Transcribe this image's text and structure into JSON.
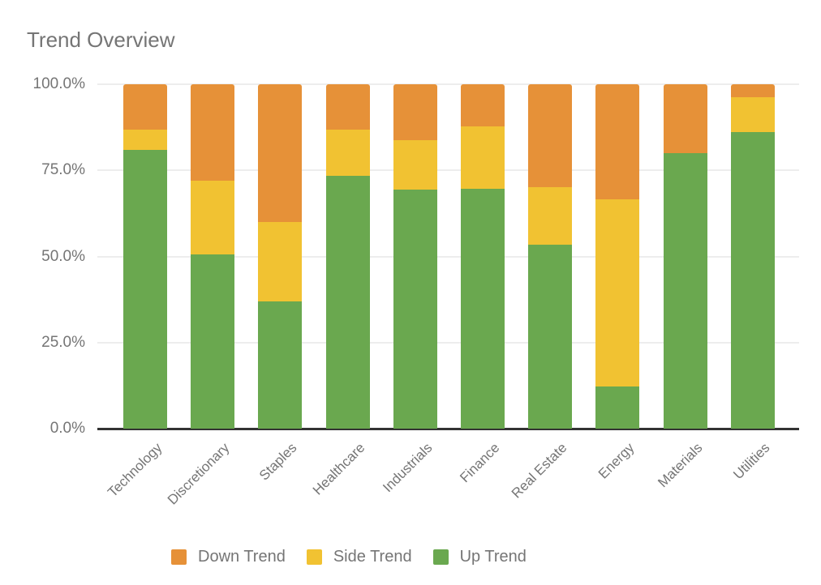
{
  "title": "Trend Overview",
  "colors": {
    "down_trend": "#E69138",
    "side_trend": "#F1C232",
    "up_trend": "#6AA84F",
    "text_gray": "#757575",
    "gridline": "#EDEDED",
    "axis_line": "#333333",
    "background": "#FFFFFF"
  },
  "chart_data": {
    "type": "bar",
    "subtype": "stacked-100-percent-column",
    "title": "Trend Overview",
    "xlabel": "",
    "ylabel": "",
    "grid": true,
    "legend_position": "bottom",
    "ylim": [
      0,
      100
    ],
    "y_ticks": [
      {
        "label": "0.0%",
        "value": 0
      },
      {
        "label": "25.0%",
        "value": 25
      },
      {
        "label": "50.0%",
        "value": 50
      },
      {
        "label": "75.0%",
        "value": 75
      },
      {
        "label": "100.0%",
        "value": 100
      }
    ],
    "categories": [
      "Technology",
      "Discretionary",
      "Staples",
      "Healthcare",
      "Industrials",
      "Finance",
      "Real Estate",
      "Energy",
      "Materials",
      "Utilities"
    ],
    "series": [
      {
        "name": "Down Trend",
        "color": "#E69138",
        "values": [
          13.2,
          27.9,
          40.1,
          13.2,
          16.3,
          12.2,
          29.9,
          33.3,
          20.1,
          3.8
        ]
      },
      {
        "name": "Side Trend",
        "color": "#F1C232",
        "values": [
          5.8,
          21.6,
          22.9,
          13.5,
          14.3,
          18.1,
          16.8,
          54.5,
          0.0,
          10.2
        ]
      },
      {
        "name": "Up Trend",
        "color": "#6AA84F",
        "values": [
          81.0,
          50.5,
          37.0,
          73.3,
          69.4,
          69.7,
          53.3,
          12.2,
          79.9,
          86.0
        ]
      }
    ]
  },
  "legend": {
    "items": [
      {
        "label": "Down Trend",
        "color": "#E69138"
      },
      {
        "label": "Side Trend",
        "color": "#F1C232"
      },
      {
        "label": "Up Trend",
        "color": "#6AA84F"
      }
    ]
  }
}
